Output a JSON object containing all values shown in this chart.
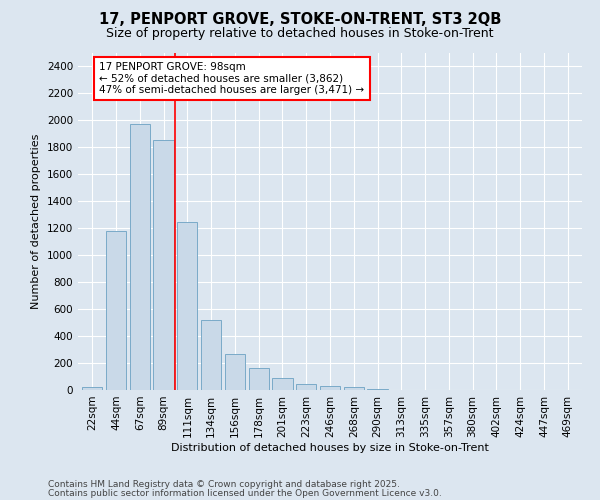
{
  "title_line1": "17, PENPORT GROVE, STOKE-ON-TRENT, ST3 2QB",
  "title_line2": "Size of property relative to detached houses in Stoke-on-Trent",
  "xlabel": "Distribution of detached houses by size in Stoke-on-Trent",
  "ylabel": "Number of detached properties",
  "categories": [
    "22sqm",
    "44sqm",
    "67sqm",
    "89sqm",
    "111sqm",
    "134sqm",
    "156sqm",
    "178sqm",
    "201sqm",
    "223sqm",
    "246sqm",
    "268sqm",
    "290sqm",
    "313sqm",
    "335sqm",
    "357sqm",
    "380sqm",
    "402sqm",
    "424sqm",
    "447sqm",
    "469sqm"
  ],
  "values": [
    22,
    1175,
    1970,
    1855,
    1245,
    515,
    270,
    160,
    90,
    42,
    32,
    25,
    5,
    2,
    1,
    0,
    0,
    0,
    0,
    0,
    0
  ],
  "bar_color": "#c9d9e8",
  "bar_edge_color": "#7aaac8",
  "vline_x": 3.5,
  "vline_color": "red",
  "annotation_text": "17 PENPORT GROVE: 98sqm\n← 52% of detached houses are smaller (3,862)\n47% of semi-detached houses are larger (3,471) →",
  "annotation_box_color": "white",
  "annotation_box_edge": "red",
  "ylim": [
    0,
    2500
  ],
  "yticks": [
    0,
    200,
    400,
    600,
    800,
    1000,
    1200,
    1400,
    1600,
    1800,
    2000,
    2200,
    2400
  ],
  "background_color": "#dce6f0",
  "plot_bg_color": "#dce6f0",
  "footer_line1": "Contains HM Land Registry data © Crown copyright and database right 2025.",
  "footer_line2": "Contains public sector information licensed under the Open Government Licence v3.0.",
  "title_fontsize": 10.5,
  "subtitle_fontsize": 9,
  "axis_label_fontsize": 8,
  "tick_fontsize": 7.5,
  "annotation_fontsize": 7.5,
  "footer_fontsize": 6.5
}
